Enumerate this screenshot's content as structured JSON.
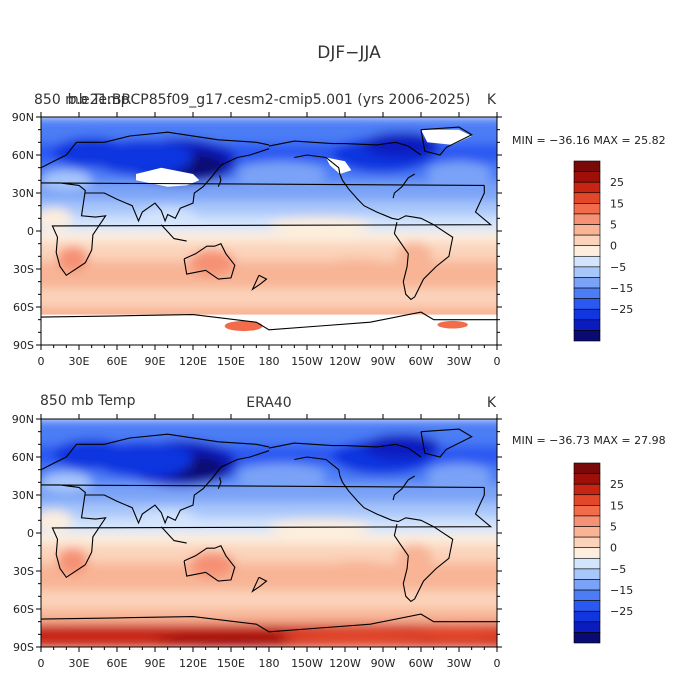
{
  "page_title": "DJF−JJA",
  "colors": {
    "levels": [
      "#0a0a73",
      "#0b1cbf",
      "#1136e0",
      "#2a59f2",
      "#4c7df5",
      "#7aa3f7",
      "#a7c6fa",
      "#d3e4fd",
      "#fdeedd",
      "#fbd3ba",
      "#f8b495",
      "#f59174",
      "#f26b4a",
      "#e3472a",
      "#c72513",
      "#9e0f0a",
      "#7a0a0a"
    ],
    "missing": "#ffffff",
    "coast": "#000000"
  },
  "chart_data": [
    {
      "type": "heatmap",
      "title_left": "850 mb Temp",
      "title_center": "b.e21.BRCP85f09_g17.cesm2-cmip5.001 (yrs 2006-2025)",
      "title_right": "K",
      "stats": "MIN = −36.16  MAX =  25.82",
      "xlabel": "",
      "ylabel": "",
      "xlim": [
        0,
        360
      ],
      "ylim": [
        -90,
        90
      ],
      "x_ticks": [
        "0",
        "30E",
        "60E",
        "90E",
        "120E",
        "150E",
        "180",
        "150W",
        "120W",
        "90W",
        "60W",
        "30W",
        "0"
      ],
      "y_ticks": [
        "90N",
        "60N",
        "30N",
        "0",
        "30S",
        "60S",
        "90S"
      ],
      "colorbar_labels": [
        "25",
        "15",
        "5",
        "0",
        "−5",
        "−15",
        "−25"
      ],
      "min": -36.16,
      "max": 25.82,
      "has_missing": true
    },
    {
      "type": "heatmap",
      "title_left": "850 mb Temp",
      "title_center": "ERA40",
      "title_right": "K",
      "stats": "MIN = −36.73  MAX =  27.98",
      "xlabel": "",
      "ylabel": "",
      "xlim": [
        0,
        360
      ],
      "ylim": [
        -90,
        90
      ],
      "x_ticks": [
        "0",
        "30E",
        "60E",
        "90E",
        "120E",
        "150E",
        "180",
        "150W",
        "120W",
        "90W",
        "60W",
        "30W",
        "0"
      ],
      "y_ticks": [
        "90N",
        "60N",
        "30N",
        "0",
        "30S",
        "60S",
        "90S"
      ],
      "colorbar_labels": [
        "25",
        "15",
        "5",
        "0",
        "−5",
        "−15",
        "−25"
      ],
      "min": -36.73,
      "max": 27.98,
      "has_missing": false
    }
  ]
}
